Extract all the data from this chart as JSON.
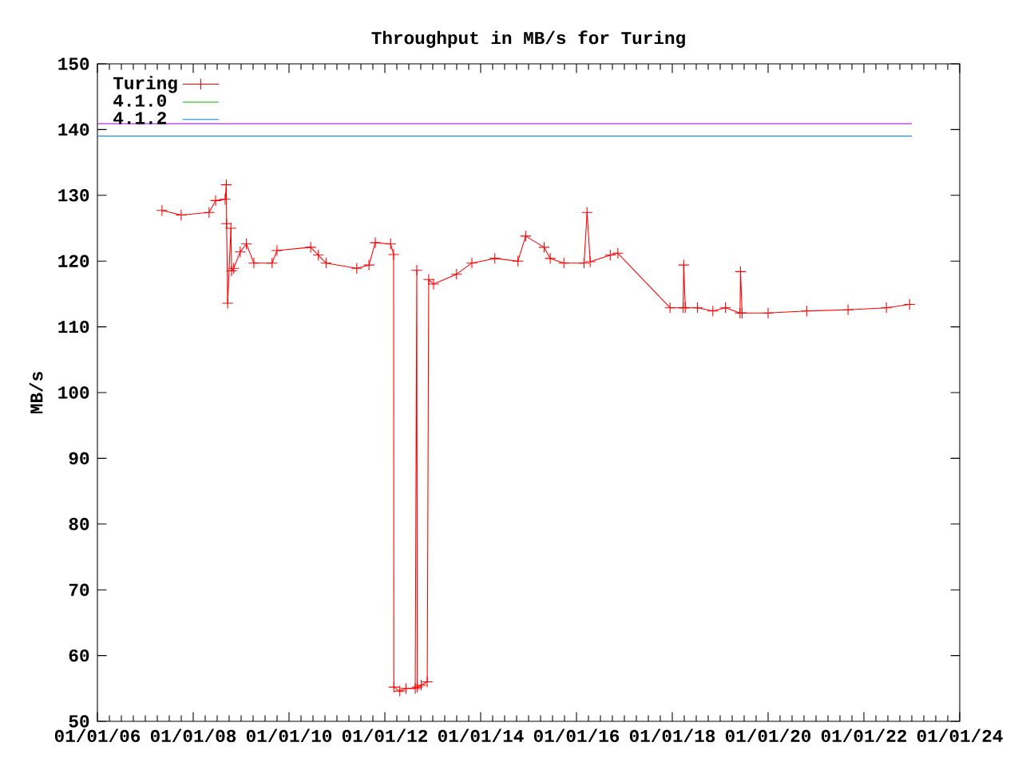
{
  "chart_data": {
    "type": "line",
    "title": "Throughput in MB/s for Turing",
    "ylabel": "MB/s",
    "xlim": [
      "2006-01-01",
      "2024-01-01"
    ],
    "xticks": [
      {
        "value": "2006-01-01",
        "label": "01/01/06"
      },
      {
        "value": "2008-01-01",
        "label": "01/01/08"
      },
      {
        "value": "2010-01-01",
        "label": "01/01/10"
      },
      {
        "value": "2012-01-01",
        "label": "01/01/12"
      },
      {
        "value": "2014-01-01",
        "label": "01/01/14"
      },
      {
        "value": "2016-01-01",
        "label": "01/01/16"
      },
      {
        "value": "2018-01-01",
        "label": "01/01/18"
      },
      {
        "value": "2020-01-01",
        "label": "01/01/20"
      },
      {
        "value": "2022-01-01",
        "label": "01/01/22"
      },
      {
        "value": "2024-01-01",
        "label": "01/01/24"
      }
    ],
    "ylim": [
      50,
      150
    ],
    "yticks": [
      50,
      60,
      70,
      80,
      90,
      100,
      110,
      120,
      130,
      140,
      150
    ],
    "legend": "top left",
    "series": [
      {
        "name": "Turing",
        "color": "#ff0000",
        "marker": "cross",
        "line_style": "solid",
        "x": [
          "2007-05-08",
          "2007-10-01",
          "2008-05-01",
          "2008-06-20",
          "2008-09-01",
          "2008-09-10",
          "2008-09-12",
          "2008-09-20",
          "2008-10-15",
          "2008-10-20",
          "2008-11-05",
          "2008-12-25",
          "2009-02-10",
          "2009-04-08",
          "2009-08-25",
          "2009-10-01",
          "2010-06-15",
          "2010-08-12",
          "2010-10-10",
          "2011-06-01",
          "2011-09-02",
          "2011-10-20",
          "2012-02-14",
          "2012-03-08",
          "2012-03-10",
          "2012-04-24",
          "2012-06-10",
          "2012-08-20",
          "2012-09-01",
          "2012-09-05",
          "2012-10-05",
          "2012-11-20",
          "2012-12-01",
          "2013-01-07",
          "2013-07-01",
          "2013-10-26",
          "2014-04-19",
          "2014-10-12",
          "2014-12-10",
          "2015-04-30",
          "2015-06-15",
          "2015-09-27",
          "2016-02-28",
          "2016-03-22",
          "2016-04-15",
          "2016-09-15",
          "2016-11-12",
          "2017-12-15",
          "2018-03-25",
          "2018-03-29",
          "2018-04-10",
          "2018-07-12",
          "2018-11-06",
          "2019-02-10",
          "2019-06-01",
          "2019-06-05",
          "2019-06-17",
          "2020-01-01",
          "2020-10-22",
          "2021-09-02",
          "2022-06-21",
          "2022-12-15"
        ],
        "values": [
          127.7,
          127.0,
          127.4,
          129.2,
          129.4,
          131.6,
          125.7,
          113.6,
          125.0,
          118.5,
          118.9,
          121.4,
          122.6,
          119.7,
          119.7,
          121.6,
          122.1,
          120.9,
          119.7,
          118.9,
          119.4,
          122.8,
          122.6,
          121.0,
          55.2,
          54.6,
          55.0,
          55.0,
          118.6,
          55.2,
          55.5,
          56.0,
          117.2,
          116.5,
          118.0,
          119.7,
          120.4,
          120.0,
          123.8,
          122.1,
          120.4,
          119.7,
          119.7,
          127.4,
          119.9,
          120.9,
          121.2,
          112.9,
          112.9,
          119.4,
          112.9,
          112.9,
          112.4,
          112.9,
          112.1,
          118.4,
          112.1,
          112.1,
          112.4,
          112.6,
          112.9,
          113.4
        ]
      },
      {
        "name": "4.1.0",
        "color": "#00c000",
        "marker": "none",
        "line_style": "solid",
        "values": [
          null,
          null
        ]
      },
      {
        "name": "4.1.2",
        "color": "#0080ff",
        "marker": "none",
        "line_style": "solid",
        "x": [
          "2006-01-01",
          "2023-01-01"
        ],
        "values": [
          139.0,
          139.0
        ]
      },
      {
        "color": "#a000d0",
        "marker": "none",
        "line_style": "solid",
        "x": [
          "2006-01-01",
          "2023-01-01"
        ],
        "values": [
          140.9,
          140.9
        ]
      }
    ]
  }
}
